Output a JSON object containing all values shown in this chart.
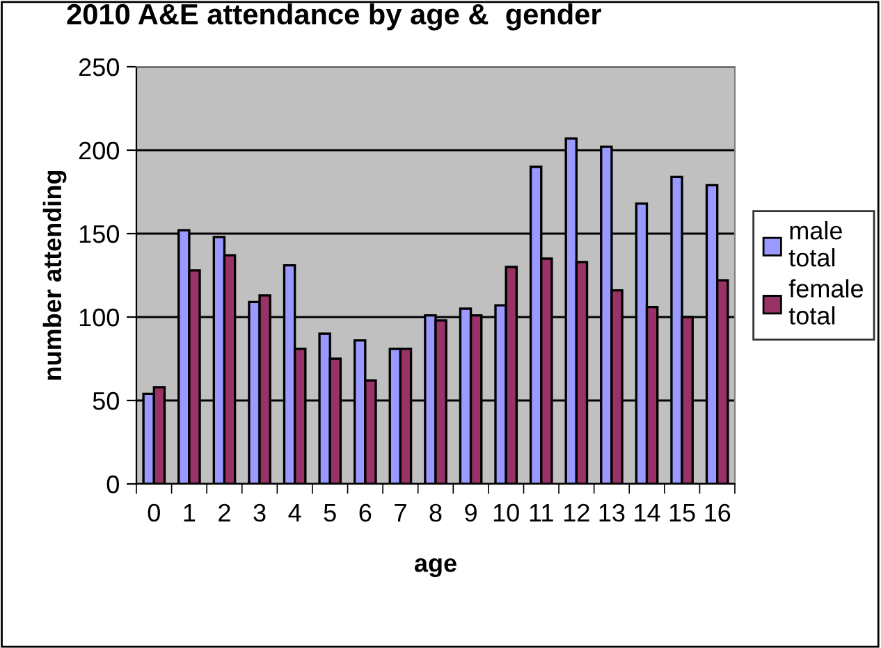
{
  "chart_data": {
    "type": "bar",
    "title": "2010 A&E attendance by age &  gender",
    "xlabel": "age",
    "ylabel": "number attending",
    "categories": [
      "0",
      "1",
      "2",
      "3",
      "4",
      "5",
      "6",
      "7",
      "8",
      "9",
      "10",
      "11",
      "12",
      "13",
      "14",
      "15",
      "16"
    ],
    "series": [
      {
        "name": "male\ntotal",
        "color": "#9999ff",
        "values": [
          54,
          152,
          148,
          109,
          131,
          90,
          86,
          81,
          101,
          105,
          107,
          190,
          207,
          202,
          168,
          184,
          179
        ]
      },
      {
        "name": "female\ntotal",
        "color": "#993366",
        "values": [
          58,
          128,
          137,
          113,
          81,
          75,
          62,
          81,
          98,
          101,
          130,
          135,
          133,
          116,
          106,
          100,
          122
        ]
      }
    ],
    "ylim": [
      0,
      250
    ],
    "yticks": [
      0,
      50,
      100,
      150,
      200,
      250
    ],
    "grid": "y",
    "legend": "right"
  }
}
